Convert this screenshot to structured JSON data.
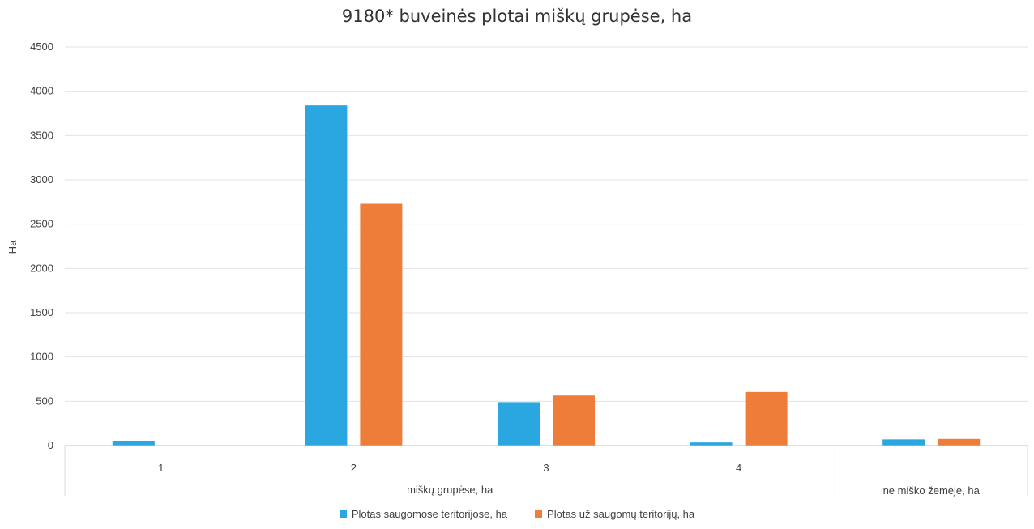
{
  "chart_data": {
    "type": "bar",
    "title": "9180* buveinės plotai miškų grupėse, ha",
    "ylabel": "Ha",
    "xlabel": "",
    "ylim": [
      0,
      4500
    ],
    "yticks": [
      0,
      500,
      1000,
      1500,
      2000,
      2500,
      3000,
      3500,
      4000,
      4500
    ],
    "grid": true,
    "legend_position": "bottom",
    "categories": [
      "1",
      "2",
      "3",
      "4",
      ""
    ],
    "group_labels": [
      {
        "label": "miškų grupėse, ha",
        "categories": [
          "1",
          "2",
          "3",
          "4"
        ]
      },
      {
        "label": "ne miško žemėje, ha",
        "categories": [
          ""
        ]
      }
    ],
    "series": [
      {
        "name": "Plotas saugomose teritorijose, ha",
        "color": "#2aa7e0",
        "values": [
          55,
          3840,
          490,
          35,
          70
        ]
      },
      {
        "name": "Plotas už saugomų teritorijų, ha",
        "color": "#ee7d3a",
        "values": [
          0,
          2730,
          565,
          605,
          75
        ]
      }
    ]
  }
}
